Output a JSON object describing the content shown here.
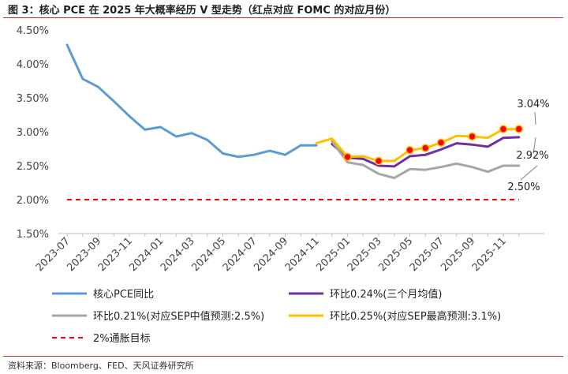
{
  "title": "图 3：核心 PCE 在 2025 年大概率经历 V 型走势（红点对应 FOMC 的对应月份）",
  "source": "资料来源：Bloomberg、FED、天风证券研究所",
  "chart_data": {
    "type": "line",
    "y_ticks": [
      "4.50%",
      "4.00%",
      "3.50%",
      "3.00%",
      "2.50%",
      "2.00%",
      "1.50%"
    ],
    "ylim": [
      1.5,
      4.5
    ],
    "x_ticks": [
      "2023-07",
      "2023-09",
      "2023-11",
      "2024-01",
      "2024-03",
      "2024-05",
      "2024-07",
      "2024-09",
      "2024-11",
      "2025-01",
      "2025-03",
      "2025-05",
      "2025-07",
      "2025-09",
      "2025-11"
    ],
    "x": [
      "2023-07",
      "2023-08",
      "2023-09",
      "2023-10",
      "2023-11",
      "2023-12",
      "2024-01",
      "2024-02",
      "2024-03",
      "2024-04",
      "2024-05",
      "2024-06",
      "2024-07",
      "2024-08",
      "2024-09",
      "2024-10",
      "2024-11",
      "2024-12",
      "2025-01",
      "2025-02",
      "2025-03",
      "2025-04",
      "2025-05",
      "2025-06",
      "2025-07",
      "2025-08",
      "2025-09",
      "2025-10",
      "2025-11",
      "2025-12"
    ],
    "grid": false,
    "legend_position": "bottom",
    "series": [
      {
        "name": "核心PCE同比",
        "color": "#5b9bd5",
        "values": [
          4.28,
          3.78,
          3.66,
          3.45,
          3.23,
          3.03,
          3.07,
          2.93,
          2.98,
          2.88,
          2.68,
          2.63,
          2.66,
          2.72,
          2.66,
          2.8,
          2.8,
          null,
          null,
          null,
          null,
          null,
          null,
          null,
          null,
          null,
          null,
          null,
          null,
          null
        ]
      },
      {
        "name": "环比0.24%(三个月均值)",
        "color": "#7030a0",
        "values": [
          null,
          null,
          null,
          null,
          null,
          null,
          null,
          null,
          null,
          null,
          null,
          null,
          null,
          null,
          null,
          null,
          null,
          2.82,
          2.62,
          2.6,
          2.5,
          2.49,
          2.64,
          2.66,
          2.74,
          2.83,
          2.81,
          2.78,
          2.91,
          2.92
        ]
      },
      {
        "name": "环比0.21%(对应SEP中值预测:2.5%)",
        "color": "#a6a6a6",
        "values": [
          null,
          null,
          null,
          null,
          null,
          null,
          null,
          null,
          null,
          null,
          null,
          null,
          null,
          null,
          null,
          null,
          null,
          2.86,
          2.55,
          2.51,
          2.38,
          2.32,
          2.45,
          2.44,
          2.48,
          2.53,
          2.48,
          2.41,
          2.5,
          2.5
        ]
      },
      {
        "name": "环比0.25%(对应SEP最高预测:3.1%)",
        "color": "#ffc000",
        "values": [
          null,
          null,
          null,
          null,
          null,
          null,
          null,
          null,
          null,
          null,
          null,
          null,
          null,
          null,
          null,
          null,
          2.83,
          2.9,
          2.63,
          2.64,
          2.57,
          2.57,
          2.73,
          2.76,
          2.84,
          2.94,
          2.93,
          2.91,
          3.04,
          3.04
        ]
      },
      {
        "name": "2%通胀目标",
        "color": "#ff0000",
        "dashed": true,
        "values": [
          2.0,
          2.0,
          2.0,
          2.0,
          2.0,
          2.0,
          2.0,
          2.0,
          2.0,
          2.0,
          2.0,
          2.0,
          2.0,
          2.0,
          2.0,
          2.0,
          2.0,
          2.0,
          2.0,
          2.0,
          2.0,
          2.0,
          2.0,
          2.0,
          2.0,
          2.0,
          2.0,
          2.0,
          2.0,
          2.0
        ]
      }
    ],
    "fomc_markers": {
      "series": "环比0.25%(对应SEP最高预测:3.1%)",
      "color": "#ff0000",
      "months": [
        "2025-01",
        "2025-03",
        "2025-05",
        "2025-06",
        "2025-07",
        "2025-09",
        "2025-11",
        "2025-12"
      ]
    },
    "annotations": [
      {
        "text": "3.04%",
        "x": "2025-12",
        "y": 3.04,
        "series": "环比0.25%(对应SEP最高预测:3.1%)"
      },
      {
        "text": "2.92%",
        "x": "2025-12",
        "y": 2.92,
        "series": "环比0.24%(三个月均值)"
      },
      {
        "text": "2.50%",
        "x": "2025-12",
        "y": 2.5,
        "series": "环比0.21%(对应SEP中值预测:2.5%)"
      }
    ]
  }
}
